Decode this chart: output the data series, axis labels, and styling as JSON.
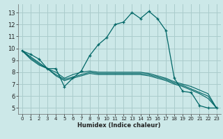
{
  "xlabel": "Humidex (Indice chaleur)",
  "bg_color": "#cce8e8",
  "grid_color": "#aacccc",
  "line_color": "#006666",
  "xlim": [
    -0.5,
    23.5
  ],
  "ylim": [
    4.5,
    13.7
  ],
  "xticks": [
    0,
    1,
    2,
    3,
    4,
    5,
    6,
    7,
    8,
    9,
    10,
    11,
    12,
    13,
    14,
    15,
    16,
    17,
    18,
    19,
    20,
    21,
    22,
    23
  ],
  "yticks": [
    5,
    6,
    7,
    8,
    9,
    10,
    11,
    12,
    13
  ],
  "line1_x": [
    0,
    1,
    2,
    3,
    4,
    5,
    6,
    7,
    8,
    9,
    10,
    11,
    12,
    13,
    14,
    15,
    16,
    17,
    18,
    19,
    20,
    21,
    22,
    23
  ],
  "line1_y": [
    9.8,
    9.5,
    9.1,
    8.3,
    8.3,
    6.8,
    7.5,
    8.1,
    9.4,
    10.3,
    10.9,
    12.0,
    12.2,
    13.0,
    12.5,
    13.1,
    12.5,
    11.5,
    7.5,
    6.4,
    6.3,
    5.2,
    5.0,
    5.0
  ],
  "line2_x": [
    0,
    1,
    2,
    3,
    4,
    5,
    6,
    7,
    8,
    9,
    10,
    11,
    12,
    13,
    14,
    15,
    16,
    17,
    18,
    19,
    20,
    21,
    22,
    23
  ],
  "line2_y": [
    9.8,
    9.3,
    8.8,
    8.3,
    8.0,
    7.5,
    7.8,
    8.0,
    8.1,
    8.0,
    8.0,
    8.0,
    8.0,
    8.0,
    8.0,
    7.9,
    7.7,
    7.5,
    7.2,
    7.0,
    6.8,
    6.5,
    6.2,
    5.0
  ],
  "line3_x": [
    0,
    1,
    2,
    3,
    4,
    5,
    6,
    7,
    8,
    9,
    10,
    11,
    12,
    13,
    14,
    15,
    16,
    17,
    18,
    19,
    20,
    21,
    22,
    23
  ],
  "line3_y": [
    9.8,
    9.2,
    8.7,
    8.3,
    7.8,
    7.4,
    7.6,
    7.8,
    8.0,
    7.9,
    7.9,
    7.9,
    7.9,
    7.9,
    7.9,
    7.8,
    7.6,
    7.4,
    7.1,
    6.9,
    6.6,
    6.3,
    6.0,
    5.0
  ],
  "line4_x": [
    0,
    1,
    2,
    3,
    4,
    5,
    6,
    7,
    8,
    9,
    10,
    11,
    12,
    13,
    14,
    15,
    16,
    17,
    18,
    19,
    20,
    21,
    22,
    23
  ],
  "line4_y": [
    9.8,
    9.1,
    8.6,
    8.3,
    7.7,
    7.3,
    7.5,
    7.7,
    7.9,
    7.8,
    7.8,
    7.8,
    7.8,
    7.8,
    7.8,
    7.7,
    7.5,
    7.3,
    7.0,
    6.8,
    6.5,
    6.2,
    5.8,
    5.0
  ]
}
